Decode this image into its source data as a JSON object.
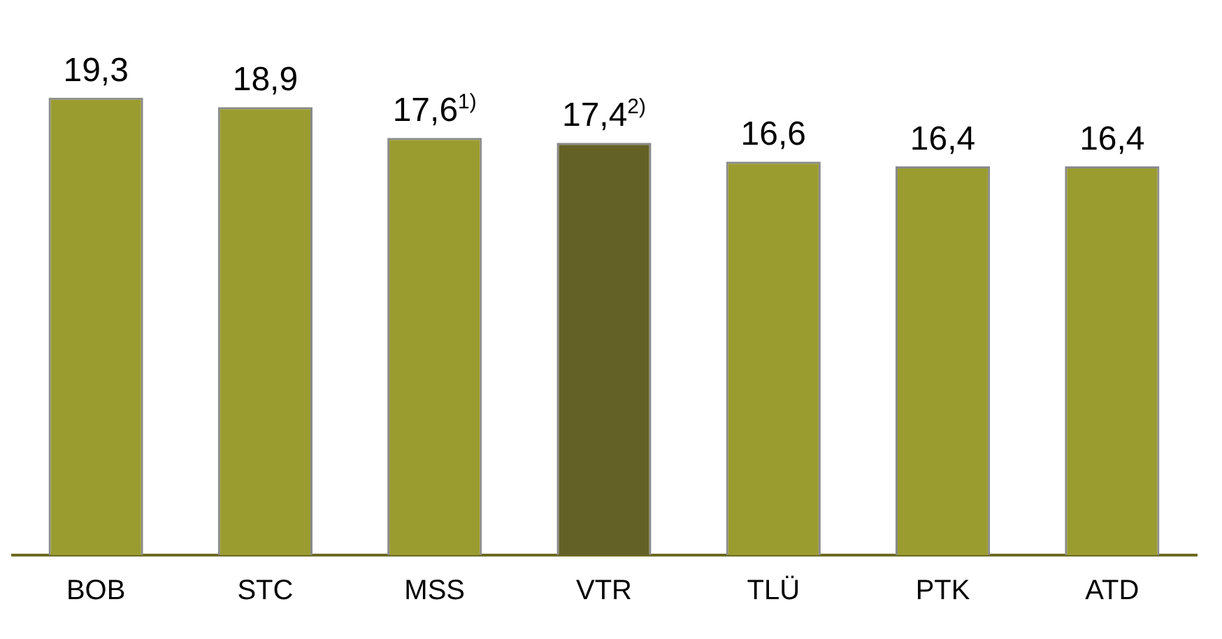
{
  "chart_data": {
    "type": "bar",
    "categories": [
      "BOB",
      "STC",
      "MSS",
      "VTR",
      "TLÜ",
      "PTK",
      "ATD"
    ],
    "values": [
      19.3,
      18.9,
      17.6,
      17.4,
      16.6,
      16.4,
      16.4
    ],
    "colors": [
      "#9a9c2f",
      "#9a9c2f",
      "#9a9c2f",
      "#636126",
      "#9a9c2f",
      "#9a9c2f",
      "#9a9c2f"
    ],
    "value_labels": [
      "19,3",
      "18,9",
      "17,6$^{1)}$",
      "17,4$^{2)}$",
      "16,6",
      "16,4",
      "16,4"
    ],
    "grid": false,
    "legend": false
  }
}
